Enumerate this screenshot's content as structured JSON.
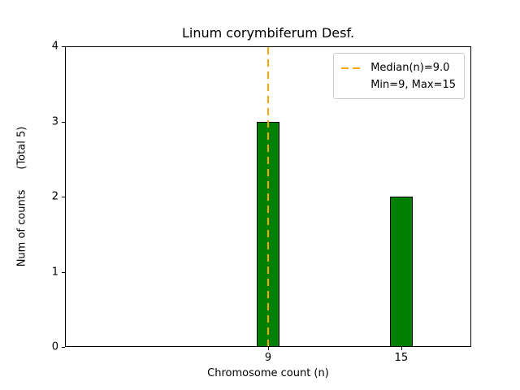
{
  "chart_data": {
    "type": "bar",
    "title": "Linum corymbiferum Desf.",
    "xlabel": "Chromosome count (n)",
    "ylabel": "Num of counts      (Total 5)",
    "x": [
      9,
      15
    ],
    "counts": [
      3,
      2
    ],
    "total": 5,
    "bar_width": 1.0,
    "bar_color": "#008000",
    "bar_edge_color": "#000000",
    "median": 9.0,
    "median_color": "#FFA500",
    "min": 9,
    "max": 15,
    "xlim": [
      -0.15,
      18.15
    ],
    "ylim": [
      0,
      4
    ],
    "xticks": [
      9,
      15
    ],
    "yticks": [
      0,
      1,
      2,
      3,
      4
    ],
    "grid": false,
    "legend": {
      "position": "upper right",
      "entries": [
        "Median(n)=9.0",
        "Min=9, Max=15"
      ]
    }
  }
}
